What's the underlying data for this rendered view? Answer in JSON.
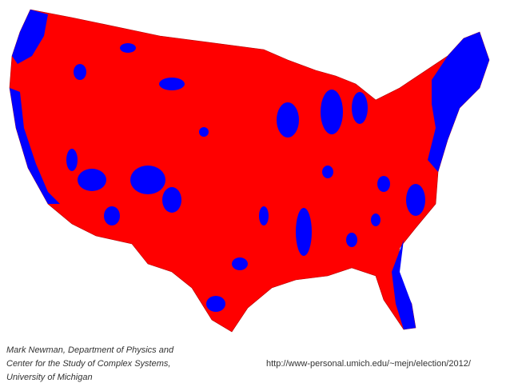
{
  "credit": {
    "lines": [
      "Mark Newman, Department of Physics and",
      "Center for the Study of Complex Systems,",
      "University of Michigan"
    ]
  },
  "url": "http://www-personal.umich.edu/~mejn/election/2012/"
}
